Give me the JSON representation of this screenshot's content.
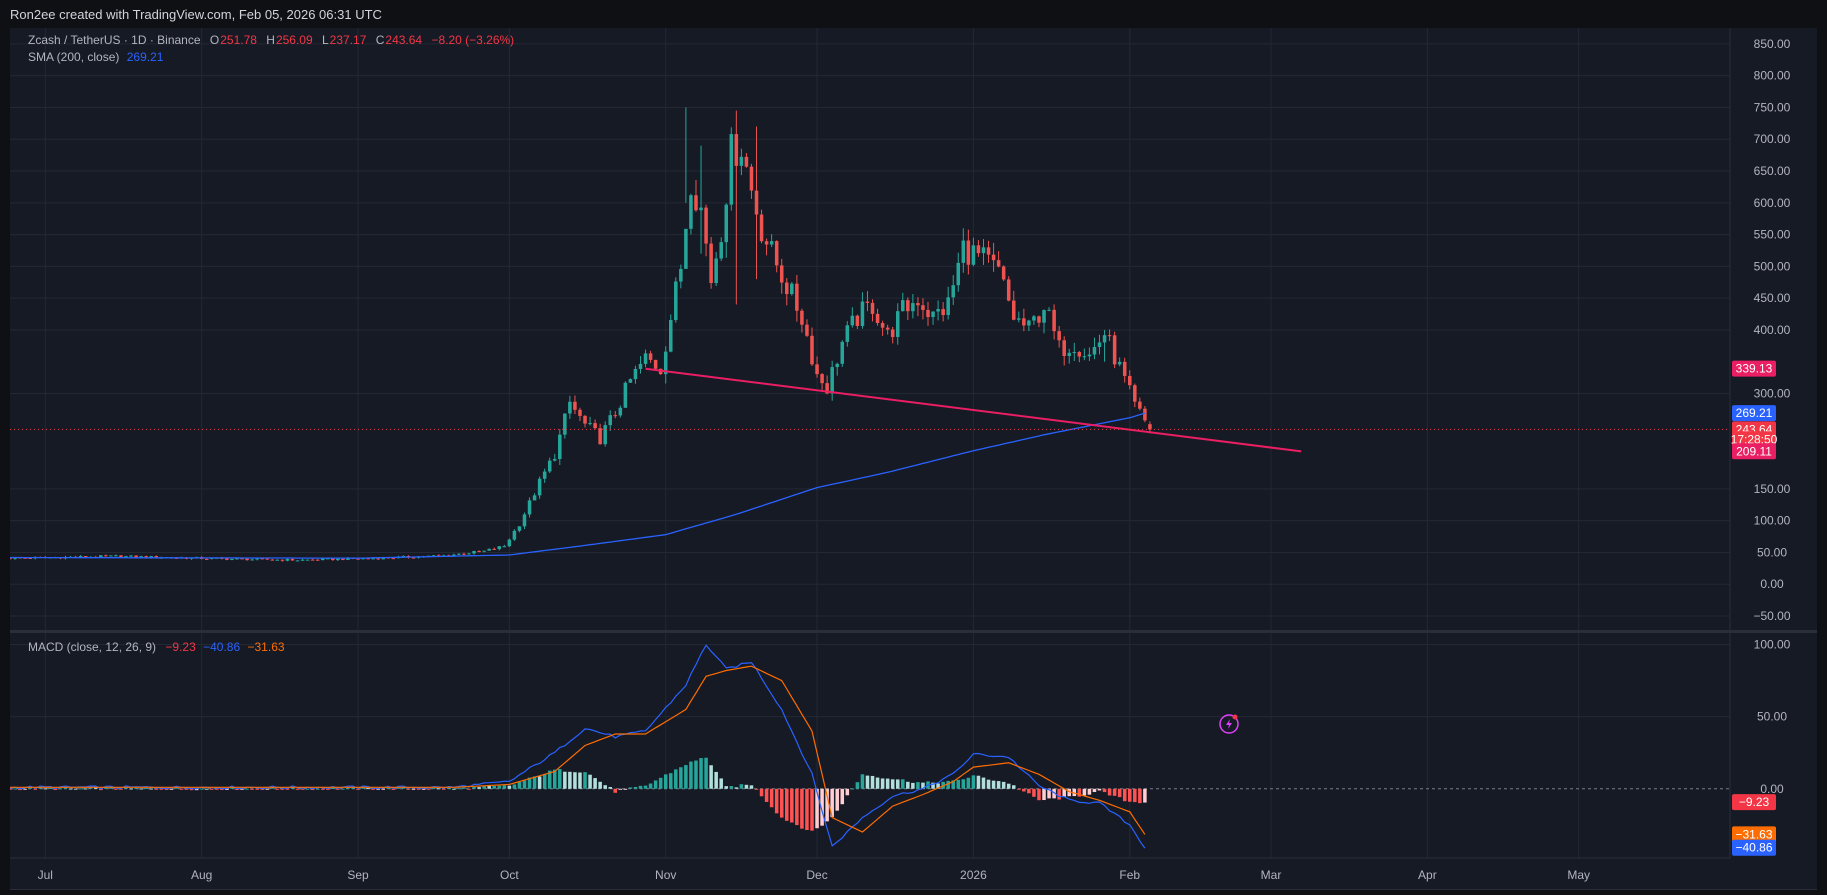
{
  "header": {
    "created_by": "Ron2ee created with TradingView.com, Feb 05, 2026 06:31 UTC"
  },
  "ohlc_legend": {
    "title": "Zcash / TetherUS · 1D · Binance",
    "o_label": "O",
    "o": "251.78",
    "h_label": "H",
    "h": "256.09",
    "l_label": "L",
    "l": "237.17",
    "c_label": "C",
    "c": "243.64",
    "change": "−8.20 (−3.26%)"
  },
  "sma_legend": {
    "label": "SMA (200, close)",
    "value": "269.21"
  },
  "macd_legend": {
    "label": "MACD (close, 12, 26, 9)",
    "histogram": "−9.23",
    "macd": "−40.86",
    "signal": "−31.63"
  },
  "colors": {
    "background": "#161a25",
    "grid": "#242834",
    "up": "#26a69a",
    "down": "#ef5350",
    "sma": "#2962ff",
    "trendline": "#e91e63",
    "macd_line": "#2962ff",
    "signal_line": "#ff6d00",
    "axis_text": "#b2b5be"
  },
  "icons": {
    "alert": "lightning-alert-icon"
  },
  "chart_data": [
    {
      "type": "candlestick",
      "title": "Zcash / TetherUS · 1D · Binance",
      "y_ticks": [
        -50,
        0,
        50,
        100,
        150,
        300,
        400,
        450,
        500,
        550,
        600,
        650,
        700,
        750,
        800,
        850
      ],
      "y_tick_labels": [
        "−50.00",
        "0.00",
        "50.00",
        "100.00",
        "150.00",
        "300.00",
        "400.00",
        "450.00",
        "500.00",
        "550.00",
        "600.00",
        "650.00",
        "700.00",
        "750.00",
        "800.00",
        "850.00"
      ],
      "ylim": [
        -72,
        875
      ],
      "x_ticks": [
        "2025-07-01",
        "2025-08-01",
        "2025-09-01",
        "2025-10-01",
        "2025-11-01",
        "2025-12-01",
        "2026-01-01",
        "2026-02-01",
        "2026-03-01",
        "2026-04-01",
        "2026-05-01"
      ],
      "x_tick_labels": [
        "Jul",
        "Aug",
        "Sep",
        "Oct",
        "Nov",
        "Dec",
        "2026",
        "Feb",
        "Mar",
        "Apr",
        "May"
      ],
      "xlim": [
        "2025-06-24",
        "2026-05-31"
      ],
      "price_anchors": {
        "dates": [
          "2025-06-24",
          "2025-07-15",
          "2025-08-05",
          "2025-08-20",
          "2025-09-05",
          "2025-09-18",
          "2025-09-26",
          "2025-09-30",
          "2025-10-03",
          "2025-10-07",
          "2025-10-10",
          "2025-10-13",
          "2025-10-16",
          "2025-10-19",
          "2025-10-22",
          "2025-10-25",
          "2025-10-28",
          "2025-10-31",
          "2025-11-02",
          "2025-11-04",
          "2025-11-06",
          "2025-11-08",
          "2025-11-10",
          "2025-11-12",
          "2025-11-14",
          "2025-11-16",
          "2025-11-18",
          "2025-11-20",
          "2025-11-22",
          "2025-11-25",
          "2025-11-28",
          "2025-12-01",
          "2025-12-03",
          "2025-12-06",
          "2025-12-09",
          "2025-12-12",
          "2025-12-15",
          "2025-12-18",
          "2025-12-21",
          "2025-12-24",
          "2025-12-27",
          "2025-12-30",
          "2026-01-03",
          "2026-01-06",
          "2026-01-09",
          "2026-01-12",
          "2026-01-15",
          "2026-01-18",
          "2026-01-21",
          "2026-01-24",
          "2026-01-27",
          "2026-01-30",
          "2026-02-02",
          "2026-02-05"
        ],
        "close": [
          41,
          44,
          40,
          38,
          41,
          45,
          52,
          60,
          95,
          160,
          205,
          285,
          250,
          230,
          270,
          320,
          355,
          340,
          420,
          500,
          640,
          590,
          480,
          560,
          680,
          690,
          620,
          560,
          520,
          470,
          420,
          330,
          310,
          380,
          420,
          440,
          390,
          430,
          450,
          420,
          440,
          530,
          510,
          490,
          420,
          400,
          440,
          370,
          380,
          360,
          395,
          340,
          280,
          243.64
        ]
      },
      "range_anchors": {
        "dates": [
          "2025-11-05",
          "2025-11-08",
          "2025-11-15",
          "2025-11-19",
          "2025-12-30",
          "2026-01-27",
          "2026-02-05"
        ],
        "high": [
          750,
          690,
          745,
          720,
          560,
          400,
          256.09
        ],
        "low": [
          600,
          520,
          440,
          480,
          490,
          350,
          237.17
        ]
      },
      "sma_200": {
        "name": "SMA (200, close)",
        "dates": [
          "2025-06-24",
          "2025-09-01",
          "2025-10-01",
          "2025-10-15",
          "2025-11-01",
          "2025-11-15",
          "2025-12-01",
          "2025-12-15",
          "2026-01-01",
          "2026-01-15",
          "2026-02-01",
          "2026-02-04"
        ],
        "values": [
          42,
          41,
          46,
          60,
          78,
          110,
          152,
          176,
          210,
          235,
          262,
          269.21
        ]
      },
      "trendline": {
        "start": [
          "2025-10-28",
          339
        ],
        "end": [
          "2026-03-07",
          209
        ]
      },
      "current_price": 243.64,
      "price_labels": [
        {
          "text": "339.13",
          "value": 339.13,
          "color": "#e91e63"
        },
        {
          "text": "269.21",
          "value": 269.21,
          "color": "#2962ff"
        },
        {
          "text": "243.64",
          "value": 243.64,
          "color": "#f23645"
        },
        {
          "text": "17:28:50",
          "value": 228,
          "color": "#f23645"
        },
        {
          "text": "209.11",
          "value": 209.11,
          "color": "#e91e63"
        }
      ]
    },
    {
      "type": "macd",
      "title": "MACD (close, 12, 26, 9)",
      "y_ticks": [
        50,
        100
      ],
      "y_tick_labels": [
        "50.00",
        "100.00"
      ],
      "ylim": [
        -48,
        108
      ],
      "zero_label": "0.00",
      "macd_anchors": {
        "dates": [
          "2025-06-24",
          "2025-09-20",
          "2025-10-01",
          "2025-10-10",
          "2025-10-16",
          "2025-10-22",
          "2025-10-28",
          "2025-11-05",
          "2025-11-09",
          "2025-11-13",
          "2025-11-18",
          "2025-11-24",
          "2025-11-30",
          "2025-12-04",
          "2025-12-10",
          "2025-12-16",
          "2025-12-22",
          "2025-12-28",
          "2026-01-01",
          "2026-01-08",
          "2026-01-14",
          "2026-01-20",
          "2026-01-26",
          "2026-02-01",
          "2026-02-04"
        ],
        "values": [
          1,
          1,
          5,
          25,
          42,
          36,
          40,
          72,
          100,
          83,
          88,
          55,
          10,
          -40,
          -20,
          -5,
          0,
          10,
          24,
          22,
          2,
          -8,
          -10,
          -25,
          -40.86
        ]
      },
      "signal_anchors": {
        "dates": [
          "2025-06-24",
          "2025-09-20",
          "2025-10-01",
          "2025-10-10",
          "2025-10-16",
          "2025-10-22",
          "2025-10-28",
          "2025-11-05",
          "2025-11-09",
          "2025-11-13",
          "2025-11-18",
          "2025-11-24",
          "2025-11-30",
          "2025-12-04",
          "2025-12-10",
          "2025-12-16",
          "2025-12-22",
          "2025-12-28",
          "2026-01-01",
          "2026-01-08",
          "2026-01-14",
          "2026-01-20",
          "2026-01-26",
          "2026-02-01",
          "2026-02-04"
        ],
        "values": [
          1,
          1,
          3,
          12,
          30,
          38,
          38,
          55,
          78,
          82,
          85,
          75,
          40,
          -20,
          -30,
          -12,
          -4,
          5,
          15,
          18,
          10,
          -2,
          -8,
          -16,
          -31.63
        ]
      },
      "current_labels": [
        {
          "text": "−9.23",
          "value": -9.23,
          "color": "#f23645"
        },
        {
          "text": "−31.63",
          "value": -31.63,
          "color": "#ff6d00"
        },
        {
          "text": "−40.86",
          "value": -40.86,
          "color": "#2962ff"
        }
      ]
    }
  ]
}
